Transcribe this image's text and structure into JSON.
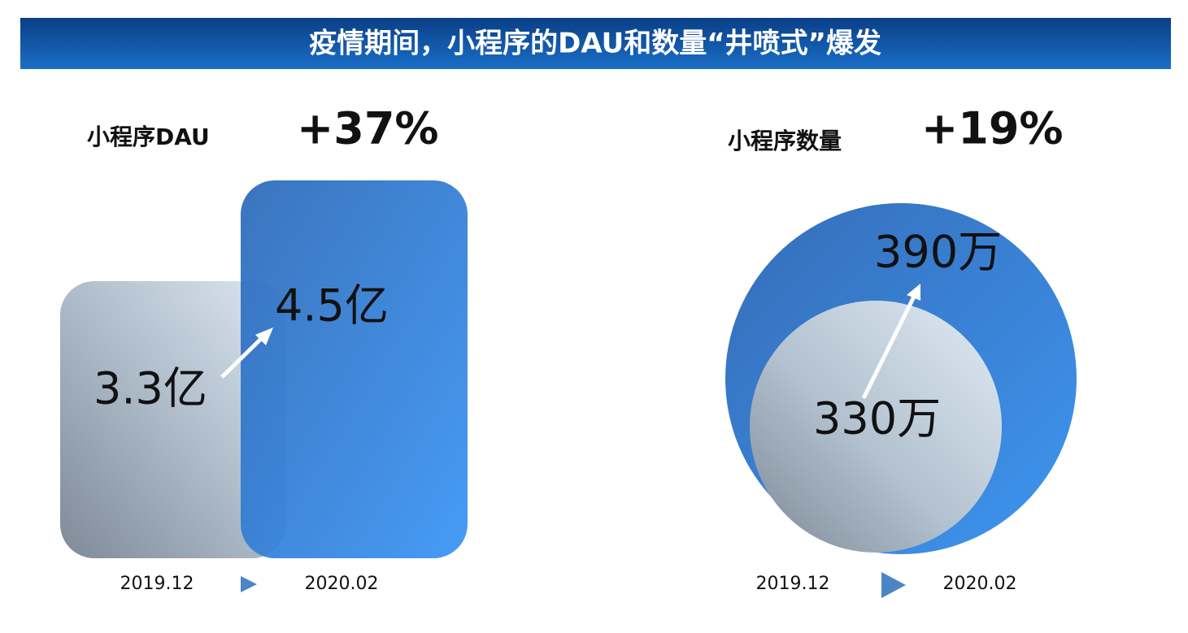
{
  "header": {
    "title": "疫情期间，小程序的DAU和数量“井喷式”爆发"
  },
  "panels": [
    {
      "title": "小程序DAU",
      "change": "+37%",
      "before": {
        "label": "3.3亿",
        "date": "2019.12"
      },
      "after": {
        "label": "4.5亿",
        "date": "2020.02"
      }
    },
    {
      "title": "小程序数量",
      "change": "+19%",
      "before": {
        "label": "330万",
        "date": "2019.12"
      },
      "after": {
        "label": "390万",
        "date": "2020.02"
      }
    }
  ]
}
